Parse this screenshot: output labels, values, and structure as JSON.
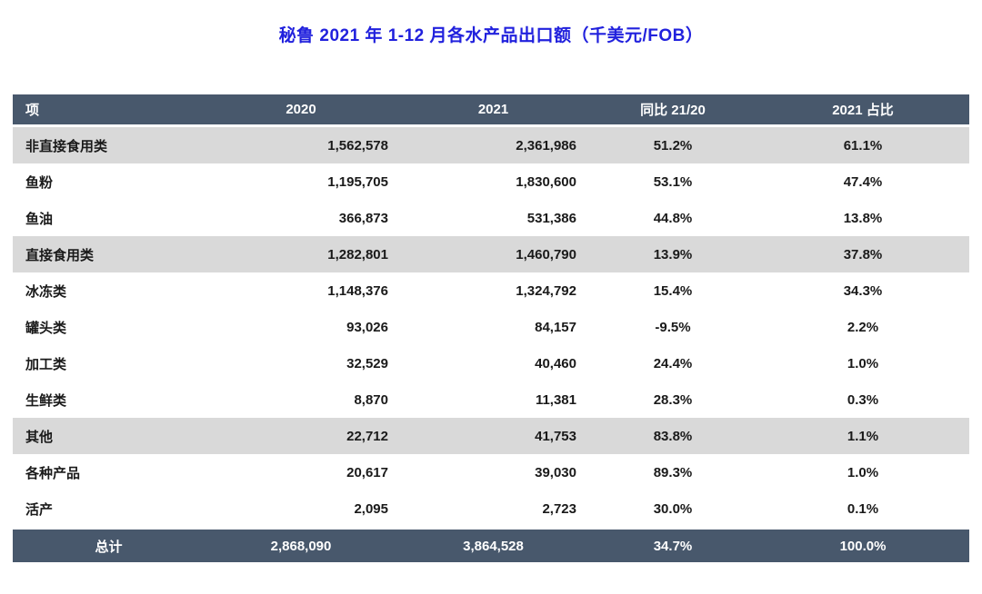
{
  "title": "秘鲁 2021 年 1-12 月各水产品出口额（千美元/FOB）",
  "colors": {
    "title": "#2121dd",
    "header_bg": "#48586c",
    "band_bg": "#d9d9d9",
    "text": "#1a1a1a"
  },
  "table": {
    "columns": [
      "项",
      "2020",
      "2021",
      "同比 21/20",
      "2021 占比"
    ],
    "rows": [
      {
        "label": "非直接食用类",
        "y2020": "1,562,578",
        "y2021": "2,361,986",
        "yoy": "51.2%",
        "share": "61.1%",
        "band": true
      },
      {
        "label": "鱼粉",
        "y2020": "1,195,705",
        "y2021": "1,830,600",
        "yoy": "53.1%",
        "share": "47.4%",
        "band": false
      },
      {
        "label": "鱼油",
        "y2020": "366,873",
        "y2021": "531,386",
        "yoy": "44.8%",
        "share": "13.8%",
        "band": false
      },
      {
        "label": "直接食用类",
        "y2020": "1,282,801",
        "y2021": "1,460,790",
        "yoy": "13.9%",
        "share": "37.8%",
        "band": true
      },
      {
        "label": "冰冻类",
        "y2020": "1,148,376",
        "y2021": "1,324,792",
        "yoy": "15.4%",
        "share": "34.3%",
        "band": false
      },
      {
        "label": "罐头类",
        "y2020": "93,026",
        "y2021": "84,157",
        "yoy": "-9.5%",
        "share": "2.2%",
        "band": false
      },
      {
        "label": "加工类",
        "y2020": "32,529",
        "y2021": "40,460",
        "yoy": "24.4%",
        "share": "1.0%",
        "band": false
      },
      {
        "label": "生鲜类",
        "y2020": "8,870",
        "y2021": "11,381",
        "yoy": "28.3%",
        "share": "0.3%",
        "band": false
      },
      {
        "label": "其他",
        "y2020": "22,712",
        "y2021": "41,753",
        "yoy": "83.8%",
        "share": "1.1%",
        "band": true
      },
      {
        "label": "各种产品",
        "y2020": "20,617",
        "y2021": "39,030",
        "yoy": "89.3%",
        "share": "1.0%",
        "band": false
      },
      {
        "label": "活产",
        "y2020": "2,095",
        "y2021": "2,723",
        "yoy": "30.0%",
        "share": "0.1%",
        "band": false
      }
    ],
    "footer": {
      "label": "总计",
      "y2020": "2,868,090",
      "y2021": "3,864,528",
      "yoy": "34.7%",
      "share": "100.0%"
    }
  },
  "chart_data": {
    "type": "table",
    "title": "秘鲁 2021 年 1-12 月各水产品出口额（千美元/FOB）",
    "units": "千美元/FOB",
    "columns": [
      "项",
      "2020",
      "2021",
      "同比 21/20",
      "2021 占比"
    ],
    "rows": [
      [
        "非直接食用类",
        1562578,
        2361986,
        51.2,
        61.1
      ],
      [
        "鱼粉",
        1195705,
        1830600,
        53.1,
        47.4
      ],
      [
        "鱼油",
        366873,
        531386,
        44.8,
        13.8
      ],
      [
        "直接食用类",
        1282801,
        1460790,
        13.9,
        37.8
      ],
      [
        "冰冻类",
        1148376,
        1324792,
        15.4,
        34.3
      ],
      [
        "罐头类",
        93026,
        84157,
        -9.5,
        2.2
      ],
      [
        "加工类",
        32529,
        40460,
        24.4,
        1.0
      ],
      [
        "生鲜类",
        8870,
        11381,
        28.3,
        0.3
      ],
      [
        "其他",
        22712,
        41753,
        83.8,
        1.1
      ],
      [
        "各种产品",
        20617,
        39030,
        89.3,
        1.0
      ],
      [
        "活产",
        2095,
        2723,
        30.0,
        0.1
      ]
    ],
    "total": [
      "总计",
      2868090,
      3864528,
      34.7,
      100.0
    ],
    "group_rows": [
      "非直接食用类",
      "直接食用类",
      "其他"
    ]
  }
}
